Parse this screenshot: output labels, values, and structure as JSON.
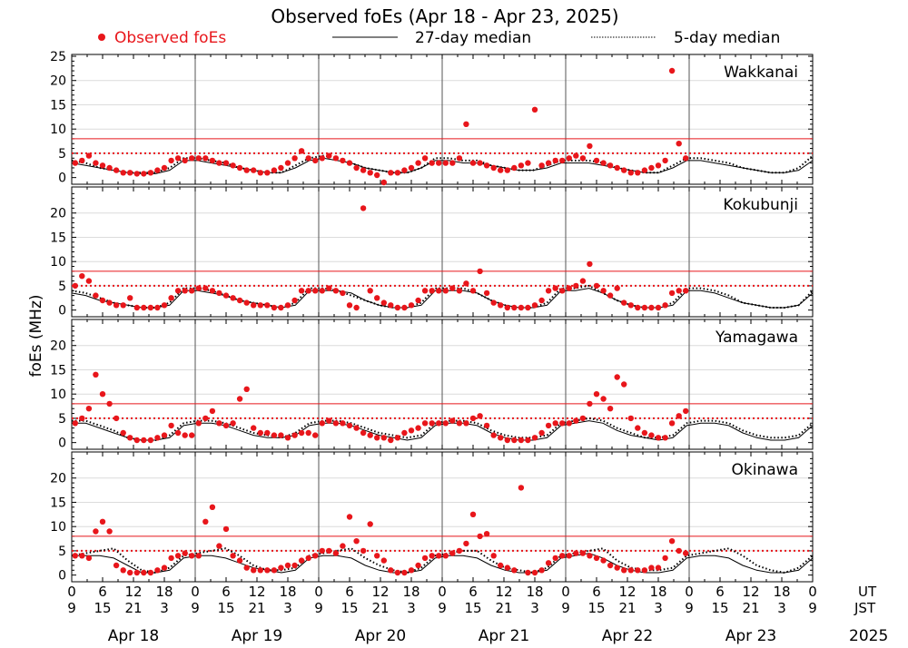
{
  "chart_data": {
    "type": "scatter",
    "title": "Observed foEs (Apr 18 - Apr 23, 2025)",
    "ylabel": "foEs (MHz)",
    "legend": {
      "observed": "Observed foEs",
      "median27": "27-day median",
      "median5": "5-day median"
    },
    "year": "2025",
    "ut_label": "UT",
    "jst_label": "JST",
    "days": [
      "Apr 18",
      "Apr 19",
      "Apr 20",
      "Apr 21",
      "Apr 22",
      "Apr 23"
    ],
    "ut_ticks": [
      "0",
      "6",
      "12",
      "18",
      "0",
      "6",
      "12",
      "18",
      "0",
      "6",
      "12",
      "18",
      "0",
      "6",
      "12",
      "18",
      "0",
      "6",
      "12",
      "18",
      "0",
      "6",
      "12",
      "18",
      "0"
    ],
    "jst_ticks": [
      "9",
      "15",
      "21",
      "3",
      "9",
      "15",
      "21",
      "3",
      "9",
      "15",
      "21",
      "3",
      "9",
      "15",
      "21",
      "3",
      "9",
      "15",
      "21",
      "3",
      "9",
      "15",
      "21",
      "3",
      "9"
    ],
    "ylim": [
      -1,
      25
    ],
    "threshold_lines": {
      "solid_red": 8,
      "dotted_red": 5
    },
    "colors": {
      "observed": "#e8161b",
      "threshold": "#e8161b",
      "median": "#000000",
      "grid": "#dcdcdc"
    },
    "panels": [
      {
        "station": "Wakkanai",
        "yticks": [
          "0",
          "5",
          "10",
          "15",
          "20",
          "25"
        ],
        "median27": [
          3,
          2.5,
          2,
          1.5,
          1,
          0.8,
          0.8,
          1.5,
          3.5,
          3.5,
          3,
          2.5,
          2,
          1.5,
          1,
          1,
          2,
          3.5,
          4,
          3.5,
          3,
          2,
          1.5,
          1,
          1,
          2,
          3.5,
          3.5,
          3,
          3,
          2.5,
          2,
          1.5,
          1.5,
          2,
          3,
          3,
          3,
          2.5,
          2,
          1.5,
          1,
          1,
          2,
          3.5,
          3.5,
          3,
          2.5,
          2,
          1.5,
          1,
          1,
          1.5,
          3.5
        ],
        "median5": [
          3.5,
          3,
          2,
          1.5,
          1,
          1,
          1,
          2,
          4,
          4,
          3.5,
          3,
          2,
          1.5,
          1,
          1,
          2.5,
          4,
          4.5,
          4,
          3,
          2,
          1.5,
          1,
          1,
          2,
          4,
          4,
          3.5,
          3.5,
          2.5,
          2,
          1.5,
          1.5,
          2.5,
          3.5,
          3.5,
          3.5,
          3,
          2,
          1.5,
          1,
          1,
          2.5,
          4,
          4,
          3.5,
          3,
          2,
          1.5,
          1,
          1,
          2,
          4.5
        ],
        "observed": [
          {
            "day": 0,
            "series": [
              3,
              3.5,
              4.5,
              3,
              2.5,
              2,
              1.5,
              1,
              1,
              0.8,
              0.8,
              1,
              1.5,
              2,
              3.5,
              4,
              3.5,
              4
            ]
          },
          {
            "day": 1,
            "series": [
              4,
              4,
              3.5,
              3,
              3,
              2.5,
              2,
              1.5,
              1.5,
              1,
              1,
              1.5,
              2,
              3,
              4,
              5.5,
              4,
              3.5
            ]
          },
          {
            "day": 2,
            "series": [
              4,
              4.5,
              4,
              3.5,
              3,
              2,
              1.5,
              1,
              0.5,
              -1,
              1,
              1,
              1.5,
              2,
              3,
              4,
              3,
              3
            ]
          },
          {
            "day": 3,
            "series": [
              3,
              3,
              4,
              11,
              3,
              3,
              2.5,
              2,
              1.5,
              1.5,
              2,
              2.5,
              3,
              14,
              2.5,
              3,
              3.5,
              3.5
            ]
          },
          {
            "day": 4,
            "series": [
              4,
              4.5,
              4,
              6.5,
              3.5,
              3,
              2.5,
              2,
              1.5,
              1,
              1,
              1.5,
              2,
              2.5,
              3.5,
              22,
              7,
              4
            ]
          }
        ]
      },
      {
        "station": "Kokubunji",
        "yticks": [
          "0",
          "5",
          "10",
          "15",
          "20"
        ],
        "median27": [
          3.5,
          3,
          2,
          1.5,
          1,
          0.5,
          0.5,
          1,
          4,
          4,
          3.5,
          3,
          2,
          1.5,
          1,
          0.5,
          1,
          4,
          4,
          4,
          3.5,
          2,
          1,
          0.5,
          0.5,
          1,
          4,
          4,
          4,
          3.5,
          2,
          1,
          0.5,
          0.5,
          1,
          4,
          4,
          4.5,
          3.5,
          2,
          1,
          0.5,
          0.5,
          1,
          4,
          4,
          3.5,
          2.5,
          1.5,
          1,
          0.5,
          0.5,
          1,
          3.5
        ],
        "median5": [
          4,
          3.5,
          2.5,
          1.5,
          1,
          0.5,
          0.5,
          1.5,
          4.5,
          4.5,
          4,
          3,
          2,
          1.5,
          1,
          0.5,
          1.5,
          4.5,
          4.5,
          4,
          3,
          2,
          1,
          0.5,
          0.5,
          1.5,
          4.5,
          4.5,
          4.5,
          3.5,
          2,
          1,
          0.5,
          0.5,
          1.5,
          4.5,
          4.5,
          5,
          3.5,
          2,
          1,
          0.5,
          0.5,
          1.5,
          4.5,
          4.5,
          4,
          3,
          1.5,
          1,
          0.5,
          0.5,
          1,
          4
        ],
        "observed": [
          {
            "day": 0,
            "series": [
              5,
              7,
              6,
              3,
              2,
              1.5,
              1,
              1,
              2.5,
              0.5,
              0.5,
              0.5,
              0.5,
              1,
              2.5,
              4,
              4,
              4
            ]
          },
          {
            "day": 1,
            "series": [
              4.5,
              4.5,
              4,
              3.5,
              3,
              2.5,
              2,
              1.5,
              1,
              1,
              1,
              0.5,
              0.5,
              1,
              2,
              4,
              4,
              4
            ]
          },
          {
            "day": 2,
            "series": [
              4,
              4.5,
              4,
              3.5,
              1,
              0.5,
              21,
              4,
              2.5,
              1.5,
              1,
              0.5,
              0.5,
              1,
              2,
              4,
              4,
              4
            ]
          },
          {
            "day": 3,
            "series": [
              4,
              4.5,
              4,
              5.5,
              4,
              8,
              3.5,
              1.5,
              1,
              0.5,
              0.5,
              0.5,
              0.5,
              1,
              2,
              4,
              4.5,
              4
            ]
          },
          {
            "day": 4,
            "series": [
              4.5,
              5,
              6,
              9.5,
              5,
              4,
              3,
              4.5,
              1.5,
              1,
              0.5,
              0.5,
              0.5,
              0.5,
              1,
              3.5,
              4,
              4
            ]
          }
        ]
      },
      {
        "station": "Yamagawa",
        "yticks": [
          "0",
          "5",
          "10",
          "15",
          "20"
        ],
        "median27": [
          4,
          4,
          3,
          2,
          1,
          0.5,
          0.5,
          1,
          3.5,
          4,
          4,
          3.5,
          2.5,
          1.5,
          1,
          1,
          1.5,
          3.5,
          4,
          4,
          3.5,
          2.5,
          1.5,
          1,
          0.5,
          1,
          3.5,
          4,
          4,
          3.5,
          2,
          1,
          0.5,
          0.5,
          1,
          3.5,
          4,
          4.5,
          4,
          2.5,
          1.5,
          1,
          0.5,
          1,
          3.5,
          4,
          4,
          3.5,
          2,
          1,
          0.5,
          0.5,
          1,
          3.5
        ],
        "median5": [
          4.5,
          4.5,
          3.5,
          2.5,
          1,
          0.5,
          0.5,
          1.5,
          4,
          4.5,
          4.5,
          4,
          3,
          2,
          1.5,
          1,
          2,
          4,
          4.5,
          4.5,
          4,
          3,
          2,
          1.5,
          1,
          1.5,
          4,
          4.5,
          4.5,
          4,
          2.5,
          1.5,
          1,
          1,
          1.5,
          4,
          4.5,
          5,
          4.5,
          3,
          2,
          1,
          1,
          1.5,
          4,
          4.5,
          4.5,
          4,
          2.5,
          1.5,
          1,
          1,
          1.5,
          4
        ],
        "observed": [
          {
            "day": 0,
            "series": [
              4,
              5,
              7,
              14,
              10,
              8,
              5,
              2,
              1,
              0.5,
              0.5,
              0.5,
              1,
              1.5,
              3.5,
              2,
              1.5,
              1.5
            ]
          },
          {
            "day": 1,
            "series": [
              4,
              5,
              6.5,
              4,
              3.5,
              4,
              9,
              11,
              3,
              2,
              2,
              1.5,
              1.5,
              1,
              1.5,
              2,
              2,
              1.5
            ]
          },
          {
            "day": 2,
            "series": [
              4,
              4.5,
              4,
              4,
              3.5,
              3,
              2,
              1.5,
              1,
              1,
              0.5,
              1,
              2,
              2.5,
              3,
              4,
              4,
              4
            ]
          },
          {
            "day": 3,
            "series": [
              4,
              4.5,
              4,
              4,
              5,
              5.5,
              3.5,
              1.5,
              1,
              0.5,
              0.5,
              0.5,
              0.5,
              1,
              2,
              3.5,
              4,
              4
            ]
          },
          {
            "day": 4,
            "series": [
              4,
              4.5,
              5,
              8,
              10,
              9,
              7,
              13.5,
              12,
              5,
              3,
              2,
              1.5,
              1,
              1,
              4,
              5.5,
              6.5
            ]
          }
        ]
      },
      {
        "station": "Okinawa",
        "yticks": [
          "0",
          "5",
          "10",
          "15",
          "20"
        ],
        "median27": [
          4,
          4,
          4,
          3.5,
          2,
          0.5,
          0.5,
          1,
          3.5,
          4,
          4,
          3.5,
          2.5,
          1.5,
          1,
          0.5,
          1,
          3.5,
          4,
          4,
          3.5,
          2,
          1,
          0.5,
          0.5,
          1,
          3.5,
          4,
          4,
          3.5,
          2,
          1,
          0.5,
          0.5,
          1,
          3.5,
          4,
          4.5,
          3.5,
          2,
          1,
          0.5,
          0.5,
          1,
          3.5,
          4,
          4,
          3.5,
          2,
          1,
          0.5,
          0.5,
          1,
          3.5
        ],
        "median5": [
          4,
          4.5,
          5,
          5.5,
          3,
          1,
          0.5,
          1.5,
          4,
          4.5,
          5,
          5.5,
          4,
          2,
          1,
          1,
          1.5,
          4,
          4.5,
          5,
          5.5,
          3.5,
          2,
          1,
          0.5,
          1.5,
          4,
          4.5,
          5,
          5,
          3,
          1.5,
          1,
          0.5,
          1.5,
          4,
          4.5,
          5,
          5.5,
          3,
          1.5,
          1,
          1,
          1.5,
          4,
          4.5,
          5,
          5.5,
          4,
          2,
          1,
          0.5,
          1.5,
          4
        ],
        "observed": [
          {
            "day": 0,
            "series": [
              4,
              4,
              3.5,
              9,
              11,
              9,
              2,
              1,
              0.5,
              0.5,
              0.5,
              0.5,
              1,
              1.5,
              3.5,
              4,
              4.5,
              4
            ]
          },
          {
            "day": 1,
            "series": [
              4,
              11,
              14,
              6,
              9.5,
              4,
              3,
              1.5,
              1,
              1,
              1,
              1,
              1.5,
              2,
              2,
              3,
              3.5,
              4
            ]
          },
          {
            "day": 2,
            "series": [
              5,
              5,
              4.5,
              6,
              12,
              7,
              5,
              10.5,
              4,
              3,
              1,
              0.5,
              0.5,
              1,
              2,
              3.5,
              4,
              4
            ]
          },
          {
            "day": 3,
            "series": [
              4,
              4.5,
              5,
              6.5,
              12.5,
              8,
              8.5,
              4,
              2,
              1.5,
              1,
              18,
              0.5,
              0.5,
              1,
              2.5,
              3.5,
              4
            ]
          },
          {
            "day": 4,
            "series": [
              4,
              4.5,
              4.5,
              4,
              3.5,
              3,
              2,
              1.5,
              1,
              1,
              1,
              1,
              1.5,
              1.5,
              3.5,
              7,
              5,
              4.5
            ]
          }
        ]
      }
    ]
  }
}
